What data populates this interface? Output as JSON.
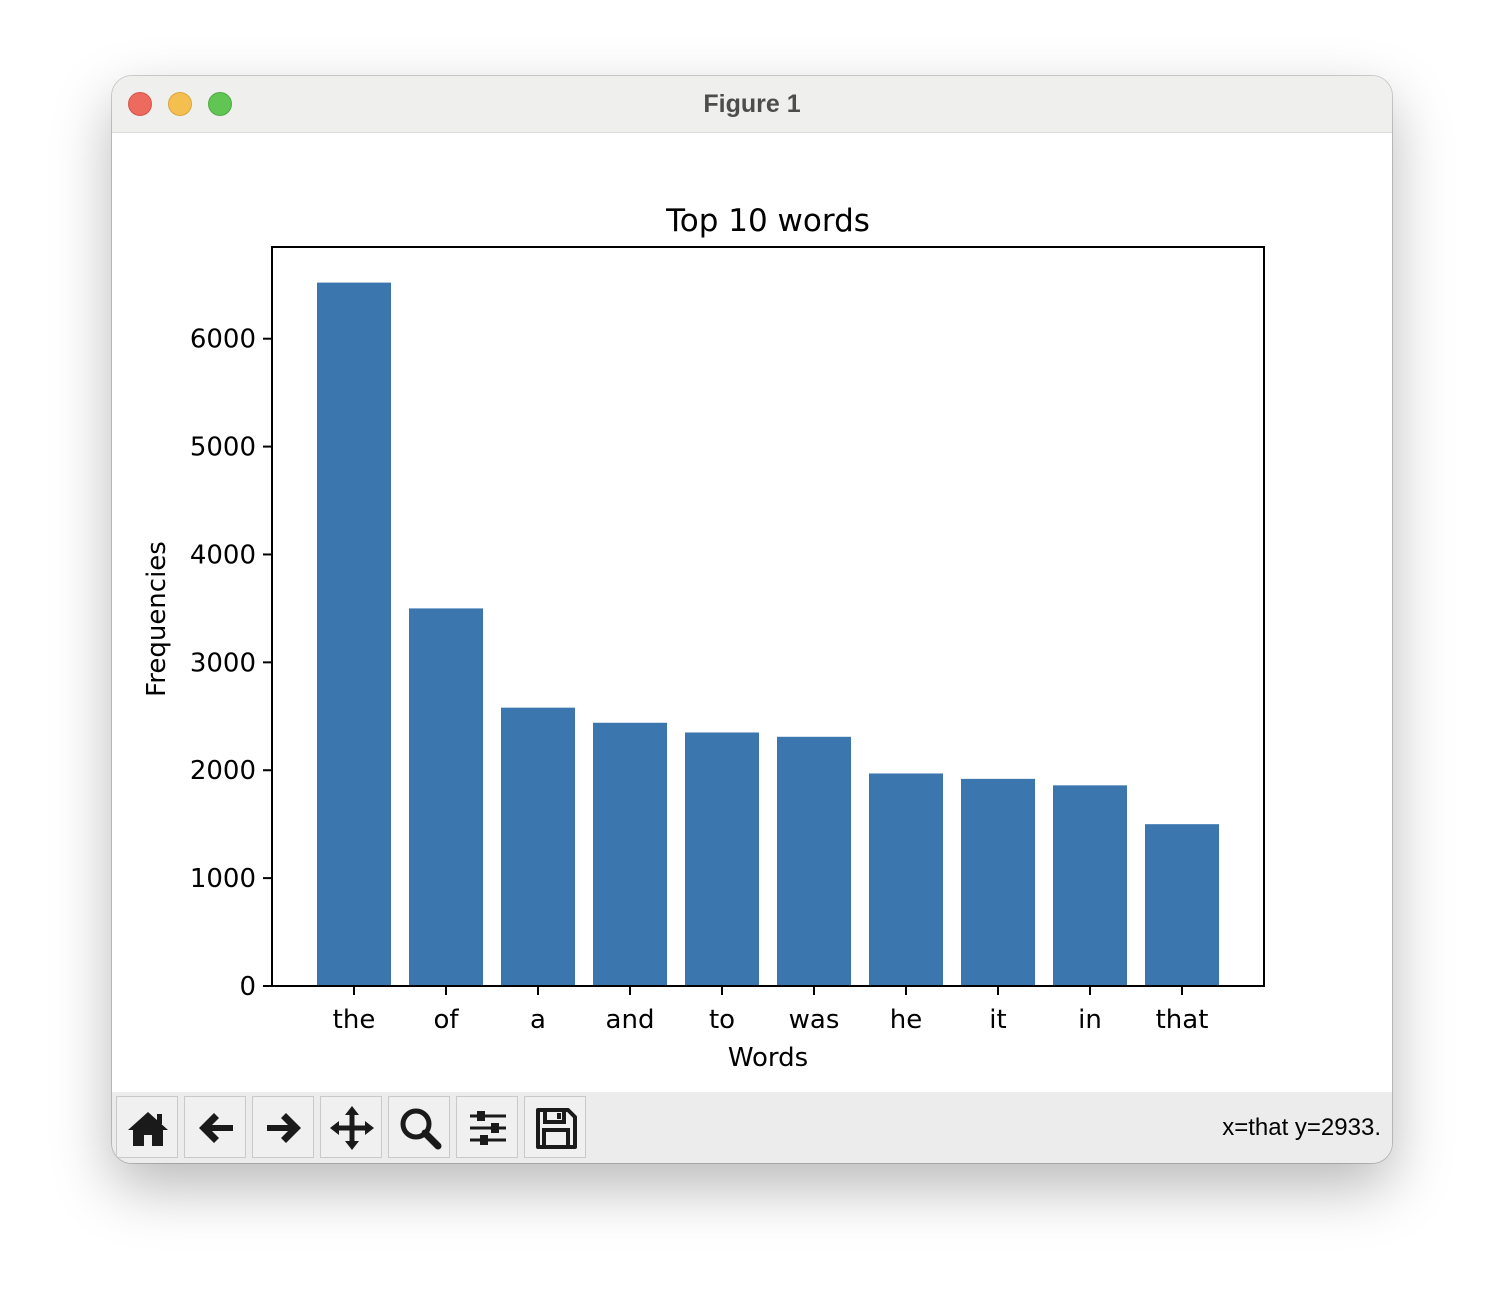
{
  "window": {
    "title": "Figure 1",
    "controls": [
      "close",
      "minimize",
      "zoom"
    ]
  },
  "toolbar": {
    "buttons": [
      {
        "name": "home",
        "icon": "home-icon"
      },
      {
        "name": "back",
        "icon": "arrow-left-icon"
      },
      {
        "name": "forward",
        "icon": "arrow-right-icon"
      },
      {
        "name": "pan",
        "icon": "move-icon"
      },
      {
        "name": "zoom",
        "icon": "magnifier-icon"
      },
      {
        "name": "configure-subplots",
        "icon": "sliders-icon"
      },
      {
        "name": "save",
        "icon": "floppy-disk-icon"
      }
    ],
    "coordinates": "x=that y=2933."
  },
  "chart_data": {
    "type": "bar",
    "title": "Top 10 words",
    "xlabel": "Words",
    "ylabel": "Frequencies",
    "categories": [
      "the",
      "of",
      "a",
      "and",
      "to",
      "was",
      "he",
      "it",
      "in",
      "that"
    ],
    "values": [
      6520,
      3500,
      2580,
      2440,
      2350,
      2310,
      1970,
      1920,
      1860,
      1500
    ],
    "yticks": [
      0,
      1000,
      2000,
      3000,
      4000,
      5000,
      6000
    ],
    "ylim": [
      0,
      6850
    ],
    "bar_color": "#3b76af",
    "grid": false,
    "legend": "none"
  }
}
